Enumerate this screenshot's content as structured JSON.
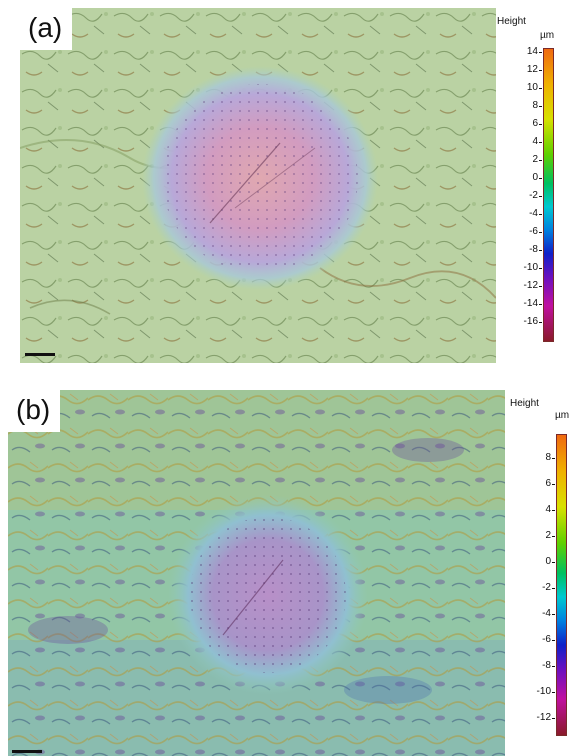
{
  "panels": [
    {
      "label": "(a)",
      "colorbar": {
        "title": "Height",
        "unit": "µm",
        "ticks": [
          "14",
          "12",
          "10",
          "8",
          "6",
          "4",
          "2",
          "0",
          "-2",
          "-4",
          "-6",
          "-8",
          "-10",
          "-12",
          "-14",
          "-16"
        ]
      }
    },
    {
      "label": "(b)",
      "colorbar": {
        "title": "Height",
        "unit": "µm",
        "ticks": [
          "8",
          "6",
          "4",
          "2",
          "0",
          "-2",
          "-4",
          "-6",
          "-8",
          "-10",
          "-12"
        ]
      }
    }
  ],
  "colors": {
    "scale_top": "#e8541e",
    "scale_bottom": "#8a1a2a",
    "surface_a": "#b9d4a4",
    "surface_b": "#8cc4a6",
    "indent_center": "#d8a0b8"
  }
}
